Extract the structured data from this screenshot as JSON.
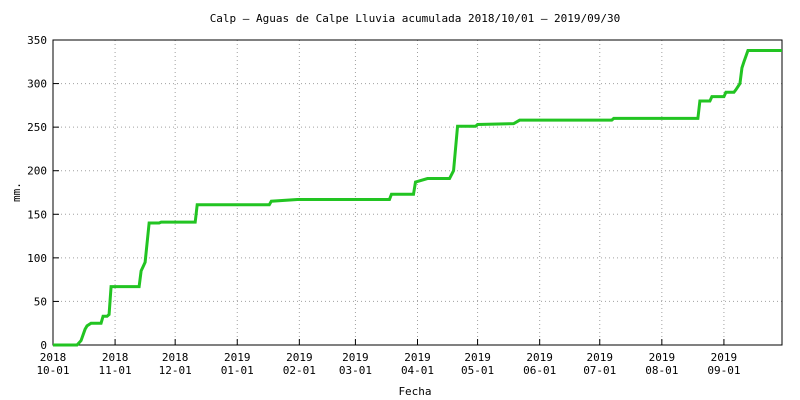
{
  "chart_data": {
    "type": "line",
    "title": "Calp – Aguas de Calpe Lluvia acumulada 2018/10/01 – 2019/09/30",
    "xlabel": "Fecha",
    "ylabel": "mm.",
    "xlim": [
      0,
      364
    ],
    "ylim": [
      0,
      350
    ],
    "yticks": [
      0,
      50,
      100,
      150,
      200,
      250,
      300,
      350
    ],
    "xticks": [
      {
        "value": 0,
        "label": "2018\n10-01"
      },
      {
        "value": 31,
        "label": "2018\n11-01"
      },
      {
        "value": 61,
        "label": "2018\n12-01"
      },
      {
        "value": 92,
        "label": "2019\n01-01"
      },
      {
        "value": 123,
        "label": "2019\n02-01"
      },
      {
        "value": 151,
        "label": "2019\n03-01"
      },
      {
        "value": 182,
        "label": "2019\n04-01"
      },
      {
        "value": 212,
        "label": "2019\n05-01"
      },
      {
        "value": 243,
        "label": "2019\n06-01"
      },
      {
        "value": 273,
        "label": "2019\n07-01"
      },
      {
        "value": 304,
        "label": "2019\n08-01"
      },
      {
        "value": 335,
        "label": "2019\n09-01"
      }
    ],
    "grid": true,
    "series": [
      {
        "color": "#22c422",
        "x": [
          0,
          12,
          14,
          16,
          17,
          19,
          24,
          25,
          27,
          28,
          29,
          43,
          44,
          45,
          46,
          48,
          53,
          54,
          71,
          72,
          108,
          109,
          122,
          168,
          169,
          180,
          181,
          187,
          198,
          200,
          202,
          211,
          212,
          230,
          233,
          279,
          280,
          322,
          323,
          328,
          329,
          335,
          336,
          340,
          341,
          343,
          344,
          345,
          347,
          364
        ],
        "values": [
          0,
          0,
          5,
          18,
          22,
          25,
          25,
          33,
          33,
          35,
          67,
          67,
          85,
          90,
          95,
          140,
          140,
          141,
          141,
          161,
          161,
          165,
          167,
          167,
          173,
          173,
          187,
          191,
          191,
          200,
          251,
          251,
          253,
          254,
          258,
          258,
          260,
          260,
          280,
          280,
          285,
          285,
          290,
          290,
          293,
          300,
          318,
          325,
          338,
          338
        ]
      }
    ]
  }
}
